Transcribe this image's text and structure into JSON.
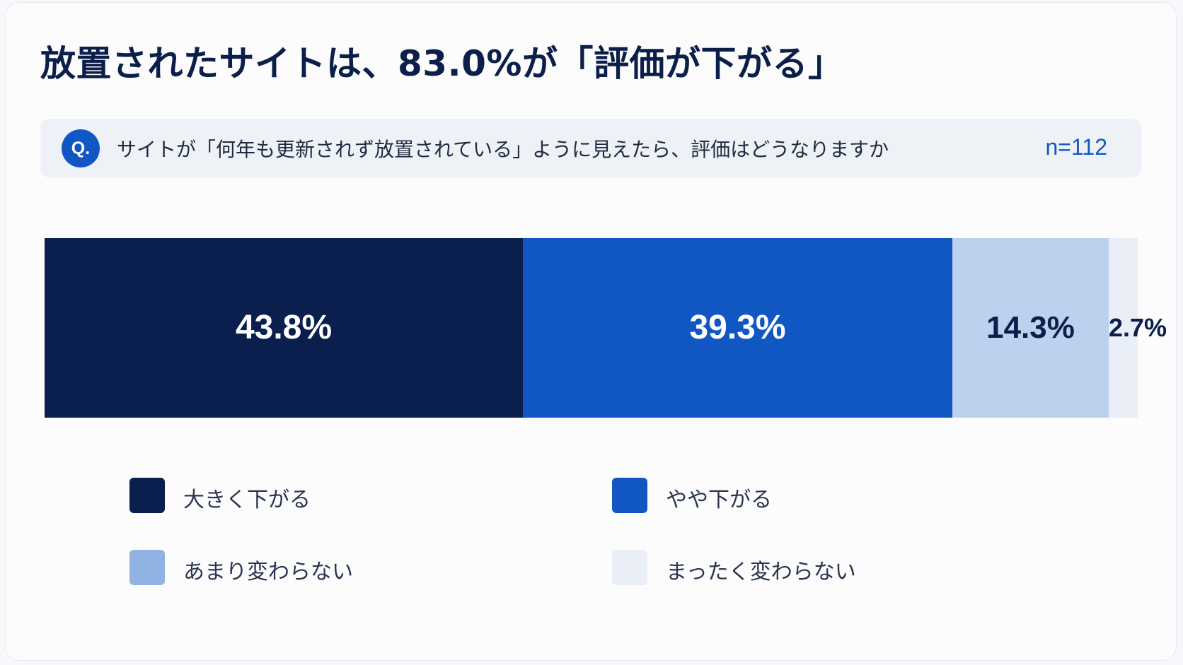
{
  "title": "放置されたサイトは、83.0%が「評価が下がる」",
  "question": {
    "badge": "Q.",
    "text": "サイトが「何年も更新されず放置されている」ように見えたら、評価はどうなりますか",
    "n": "n=112"
  },
  "chart_data": {
    "type": "bar",
    "orientation": "horizontal-stacked-100",
    "unit": "%",
    "series": [
      {
        "name": "大きく下がる",
        "value": 43.8,
        "label": "43.8%",
        "color": "#0a1f4d",
        "label_color": "#ffffff"
      },
      {
        "name": "やや下がる",
        "value": 39.3,
        "label": "39.3%",
        "color": "#1157c4",
        "label_color": "#ffffff"
      },
      {
        "name": "あまり変わらない",
        "value": 14.3,
        "label": "14.3%",
        "color": "#bcd1ee",
        "label_color": "#0b1f4a"
      },
      {
        "name": "まったく変わらない",
        "value": 2.7,
        "label": "2.7%",
        "color": "#e9eef7",
        "label_color": "#0b1f4a"
      }
    ],
    "legend": {
      "placement": "bottom",
      "swatch_colors": [
        "#0a1f4d",
        "#1157c4",
        "#91b3e3",
        "#e9eef7"
      ]
    }
  }
}
